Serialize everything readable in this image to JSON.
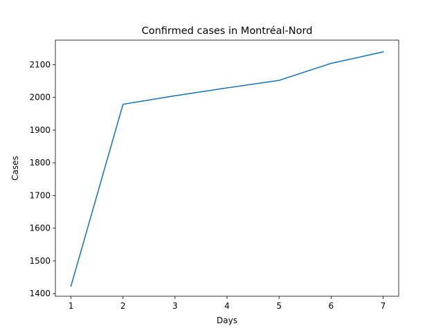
{
  "chart_data": {
    "type": "line",
    "title": "Confirmed cases in Montréal-Nord",
    "xlabel": "Days",
    "ylabel": "Cases",
    "x": [
      1,
      2,
      3,
      4,
      5,
      6,
      7
    ],
    "series": [
      {
        "values": [
          1423,
          1979,
          2005,
          2029,
          2052,
          2104,
          2139
        ],
        "color": "#1f77b4"
      }
    ],
    "xlim": [
      0.7,
      7.3
    ],
    "ylim": [
      1392,
      2175
    ],
    "xticks": [
      1,
      2,
      3,
      4,
      5,
      6,
      7
    ],
    "yticks": [
      1400,
      1500,
      1600,
      1700,
      1800,
      1900,
      2000,
      2100
    ],
    "grid": false
  }
}
